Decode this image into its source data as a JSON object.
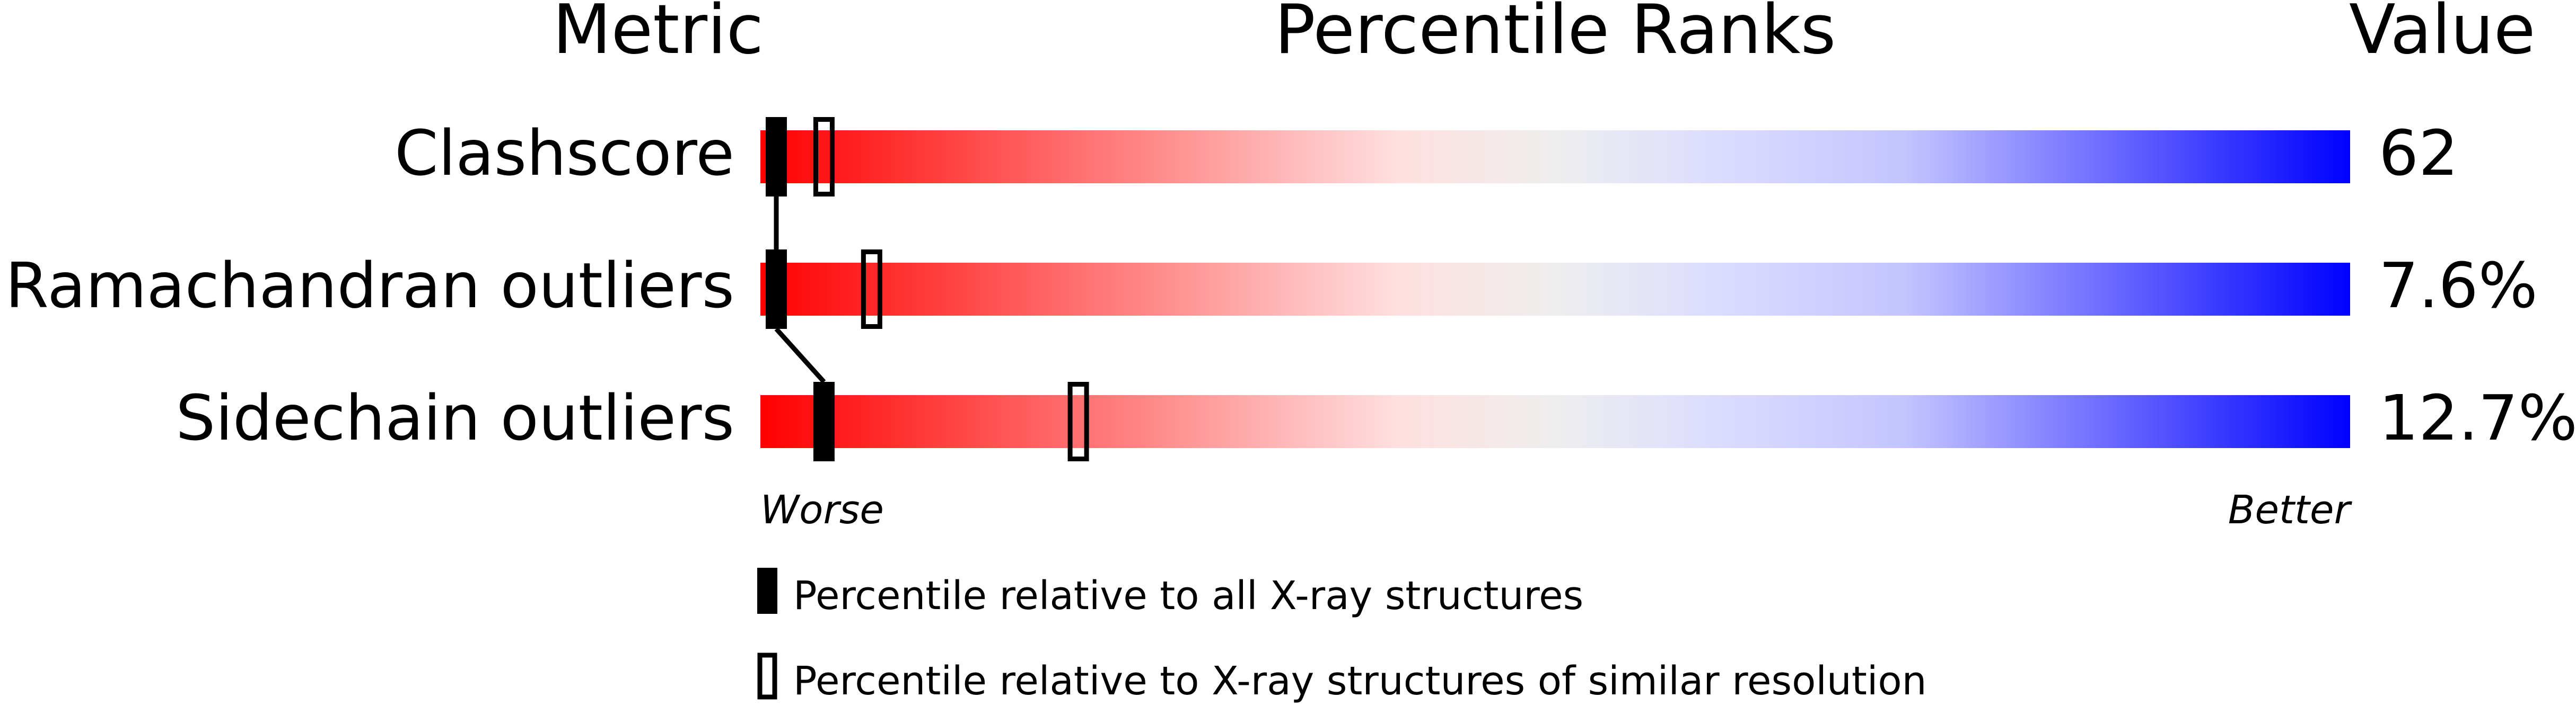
{
  "chart_data": {
    "type": "bar",
    "headers": {
      "metric": "Metric",
      "ranks": "Percentile Ranks",
      "value": "Value"
    },
    "categories": [
      "Clashscore",
      "Ramachandran outliers",
      "Sidechain outliers"
    ],
    "values": [
      "62",
      "7.6%",
      "12.7%"
    ],
    "series": [
      {
        "name": "Percentile relative to all X-ray structures",
        "marker": "filled",
        "values": [
          1,
          1,
          4
        ]
      },
      {
        "name": "Percentile relative to X-ray structures of similar resolution",
        "marker": "hollow",
        "values": [
          4,
          7,
          20
        ]
      }
    ],
    "xlim": [
      0,
      100
    ],
    "axis_labels": {
      "worse": "Worse",
      "better": "Better"
    },
    "colors": {
      "worse": "#ff0000",
      "mid": "#eeeeee",
      "better": "#0000ff"
    }
  }
}
